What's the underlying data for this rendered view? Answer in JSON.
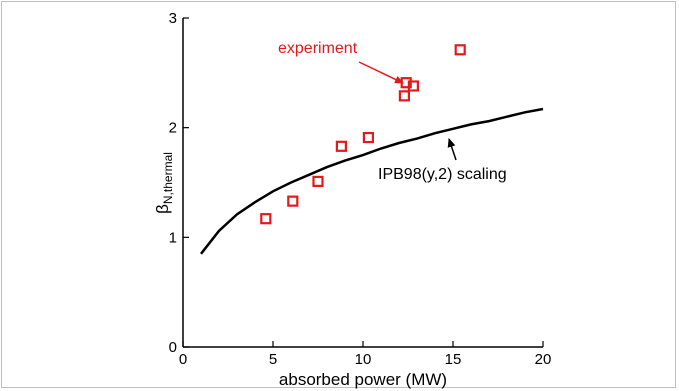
{
  "chart_data": {
    "type": "scatter",
    "xlabel": "absorbed power (MW)",
    "ylabel_main": "β",
    "ylabel_sub": "N,thermal",
    "xlim": [
      0,
      20
    ],
    "ylim": [
      0,
      3
    ],
    "x_ticks": [
      0,
      5,
      10,
      15,
      20
    ],
    "y_ticks": [
      0,
      1,
      2,
      3
    ],
    "grid": false,
    "colors": {
      "experiment": "#e31a1c",
      "scaling": "#000000",
      "axis": "#000000"
    },
    "series": [
      {
        "name": "experiment",
        "type": "scatter",
        "marker": "open-square",
        "points": [
          {
            "x": 4.6,
            "y": 1.17
          },
          {
            "x": 6.1,
            "y": 1.33
          },
          {
            "x": 7.5,
            "y": 1.51
          },
          {
            "x": 8.8,
            "y": 1.83
          },
          {
            "x": 10.3,
            "y": 1.91
          },
          {
            "x": 12.3,
            "y": 2.29
          },
          {
            "x": 12.4,
            "y": 2.41
          },
          {
            "x": 12.8,
            "y": 2.38
          },
          {
            "x": 15.4,
            "y": 2.71
          }
        ]
      },
      {
        "name": "IPB98(y,2) scaling",
        "type": "line",
        "points": [
          {
            "x": 1.0,
            "y": 0.85
          },
          {
            "x": 2.0,
            "y": 1.06
          },
          {
            "x": 3.0,
            "y": 1.21
          },
          {
            "x": 4.0,
            "y": 1.32
          },
          {
            "x": 5.0,
            "y": 1.42
          },
          {
            "x": 6.0,
            "y": 1.5
          },
          {
            "x": 7.0,
            "y": 1.57
          },
          {
            "x": 8.0,
            "y": 1.64
          },
          {
            "x": 9.0,
            "y": 1.7
          },
          {
            "x": 10.0,
            "y": 1.75
          },
          {
            "x": 11.0,
            "y": 1.81
          },
          {
            "x": 12.0,
            "y": 1.86
          },
          {
            "x": 13.0,
            "y": 1.9
          },
          {
            "x": 14.0,
            "y": 1.95
          },
          {
            "x": 15.0,
            "y": 1.99
          },
          {
            "x": 16.0,
            "y": 2.03
          },
          {
            "x": 17.0,
            "y": 2.06
          },
          {
            "x": 18.0,
            "y": 2.1
          },
          {
            "x": 19.0,
            "y": 2.14
          },
          {
            "x": 20.0,
            "y": 2.17
          }
        ]
      }
    ],
    "annotations": [
      {
        "text": "experiment",
        "color": "#e31a1c",
        "points_to": {
          "x": 12.3,
          "y": 2.42
        }
      },
      {
        "text": "IPB98(y,2) scaling",
        "color": "#000000",
        "points_to": {
          "x": 14.8,
          "y": 1.97
        }
      }
    ]
  }
}
